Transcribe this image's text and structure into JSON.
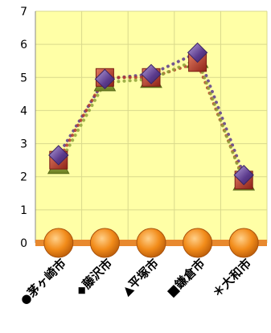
{
  "chart_data": {
    "type": "line",
    "categories": [
      "●茅ヶ崎市",
      "◆藤沢市",
      "▲平塚市",
      "■鎌倉市",
      "＊大和市"
    ],
    "ylim": [
      0,
      7
    ],
    "yticks": [
      0,
      1,
      2,
      3,
      4,
      5,
      6,
      7
    ],
    "grid": true,
    "legend": "none",
    "series": [
      {
        "values": [
          2.65,
          4.95,
          5.1,
          5.75,
          2.05
        ],
        "color": "#5B3A8C",
        "marker": "diamond"
      },
      {
        "values": [
          2.5,
          5.0,
          5.0,
          5.45,
          1.9
        ],
        "color": "#B5372A",
        "marker": "square"
      },
      {
        "values": [
          2.35,
          4.85,
          4.95,
          5.55,
          1.85
        ],
        "color": "#8FA33A",
        "marker": "triangle"
      },
      {
        "values": [
          0,
          0,
          0,
          0,
          0
        ],
        "color": "#F28C1A",
        "marker": "circle"
      }
    ],
    "colors": {
      "plot_bg": "#FFFFA6",
      "grid": "#D9D98C",
      "axis_text": "#000000",
      "baseline": "#E8892E"
    }
  }
}
